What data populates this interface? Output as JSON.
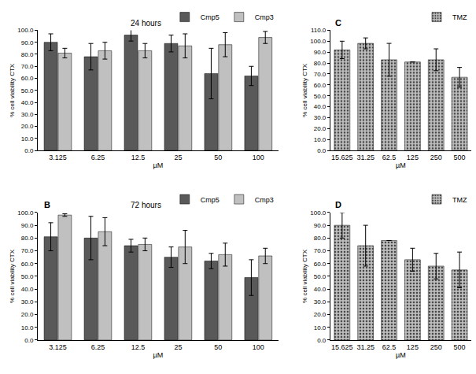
{
  "chart_data": [
    {
      "type": "bar",
      "title": "24 hours",
      "x_label": "µM",
      "y_label": "% cell viability CTX",
      "categories": [
        "3.125",
        "6.25",
        "12.5",
        "25",
        "50",
        "100"
      ],
      "series": [
        {
          "name": "Cmp5",
          "color": "#595959",
          "values": [
            90,
            78,
            96,
            89,
            64,
            62
          ],
          "errors": [
            7,
            11,
            5,
            7,
            21,
            8
          ]
        },
        {
          "name": "Cmp3",
          "color": "#c0c0c0",
          "values": [
            81,
            83,
            83,
            87,
            88,
            94
          ],
          "errors": [
            4,
            7,
            6,
            10,
            10,
            5
          ]
        }
      ],
      "ylim": [
        0,
        100
      ],
      "yticks": [
        {
          "value": 0,
          "label": "0.0"
        },
        {
          "value": 10,
          "label": "10.0"
        },
        {
          "value": 20,
          "label": "20.0"
        },
        {
          "value": 30,
          "label": "30.0"
        },
        {
          "value": 40,
          "label": "40.0"
        },
        {
          "value": 50,
          "label": "50.0"
        },
        {
          "value": 60,
          "label": "60.0"
        },
        {
          "value": 70,
          "label": "70.0"
        },
        {
          "value": 80,
          "label": "80.0"
        },
        {
          "value": 90,
          "label": "90.0"
        },
        {
          "value": 100,
          "label": "100.0"
        }
      ],
      "grid": false,
      "legend": "upper right"
    },
    {
      "type": "bar",
      "title": "72 hours",
      "annotations": [
        "B"
      ],
      "x_label": "µM",
      "y_label": "% cell viability CTX",
      "categories": [
        "3.125",
        "6.25",
        "12.5",
        "25",
        "50",
        "100"
      ],
      "series": [
        {
          "name": "Cmp5",
          "color": "#595959",
          "values": [
            81,
            80,
            74,
            65,
            62,
            49
          ],
          "errors": [
            11,
            17,
            5,
            8,
            6,
            14
          ]
        },
        {
          "name": "Cmp3",
          "color": "#c0c0c0",
          "values": [
            98,
            85,
            75,
            73,
            67,
            66
          ],
          "errors": [
            1,
            11,
            5,
            13,
            9,
            6
          ]
        }
      ],
      "ylim": [
        0,
        100
      ],
      "yticks": [
        {
          "value": 0,
          "label": "0.0"
        },
        {
          "value": 10,
          "label": "10.0"
        },
        {
          "value": 20,
          "label": "20.0"
        },
        {
          "value": 30,
          "label": "30.0"
        },
        {
          "value": 40,
          "label": "40.0"
        },
        {
          "value": 50,
          "label": "50.0"
        },
        {
          "value": 60,
          "label": "60.0"
        },
        {
          "value": 70,
          "label": "70.0"
        },
        {
          "value": 80,
          "label": "80.0"
        },
        {
          "value": 90,
          "label": "90.0"
        },
        {
          "value": 100,
          "label": "100.0"
        }
      ],
      "grid": false,
      "legend": "upper right"
    },
    {
      "type": "bar",
      "annotations": [
        "C"
      ],
      "x_label": "µM",
      "y_label": "% cell viability CTX",
      "categories": [
        "15.625",
        "31.25",
        "62.5",
        "125",
        "250",
        "500"
      ],
      "series": [
        {
          "name": "TMZ",
          "color": "#bfbfbf",
          "marker": "dotted",
          "values": [
            92,
            98,
            83,
            81,
            83,
            67
          ],
          "errors": [
            8,
            5,
            15,
            0,
            10,
            9
          ]
        }
      ],
      "ylim": [
        0,
        110
      ],
      "yticks": [
        {
          "value": 0,
          "label": "0.0"
        },
        {
          "value": 10,
          "label": "10.0"
        },
        {
          "value": 20,
          "label": "20.0"
        },
        {
          "value": 30,
          "label": "30.0"
        },
        {
          "value": 40,
          "label": "40.0"
        },
        {
          "value": 50,
          "label": "50.0"
        },
        {
          "value": 60,
          "label": "60.0"
        },
        {
          "value": 70,
          "label": "70.0"
        },
        {
          "value": 80,
          "label": "80.0"
        },
        {
          "value": 90,
          "label": "90.0"
        },
        {
          "value": 100,
          "label": "100.0"
        },
        {
          "value": 110,
          "label": "110.0"
        }
      ],
      "grid": false,
      "legend": "upper right"
    },
    {
      "type": "bar",
      "annotations": [
        "D"
      ],
      "x_label": "µM",
      "y_label": "% cell viability CTX",
      "categories": [
        "15.625",
        "31.25",
        "62.5",
        "125",
        "250",
        "500"
      ],
      "series": [
        {
          "name": "TMZ",
          "color": "#bfbfbf",
          "marker": "dotted",
          "values": [
            90,
            74,
            78,
            63,
            58,
            55
          ],
          "errors": [
            10,
            16,
            0,
            9,
            10,
            14
          ]
        }
      ],
      "ylim": [
        0,
        100
      ],
      "yticks": [
        {
          "value": 0,
          "label": "0.0"
        },
        {
          "value": 10,
          "label": "10.0"
        },
        {
          "value": 20,
          "label": "20.0"
        },
        {
          "value": 30,
          "label": "30.0"
        },
        {
          "value": 40,
          "label": "40.0"
        },
        {
          "value": 50,
          "label": "50.0"
        },
        {
          "value": 60,
          "label": "60.0"
        },
        {
          "value": 70,
          "label": "70.0"
        },
        {
          "value": 80,
          "label": "80.0"
        },
        {
          "value": 90,
          "label": "90.0"
        },
        {
          "value": 100,
          "label": "100.0"
        }
      ],
      "grid": false,
      "legend": "upper right"
    }
  ]
}
